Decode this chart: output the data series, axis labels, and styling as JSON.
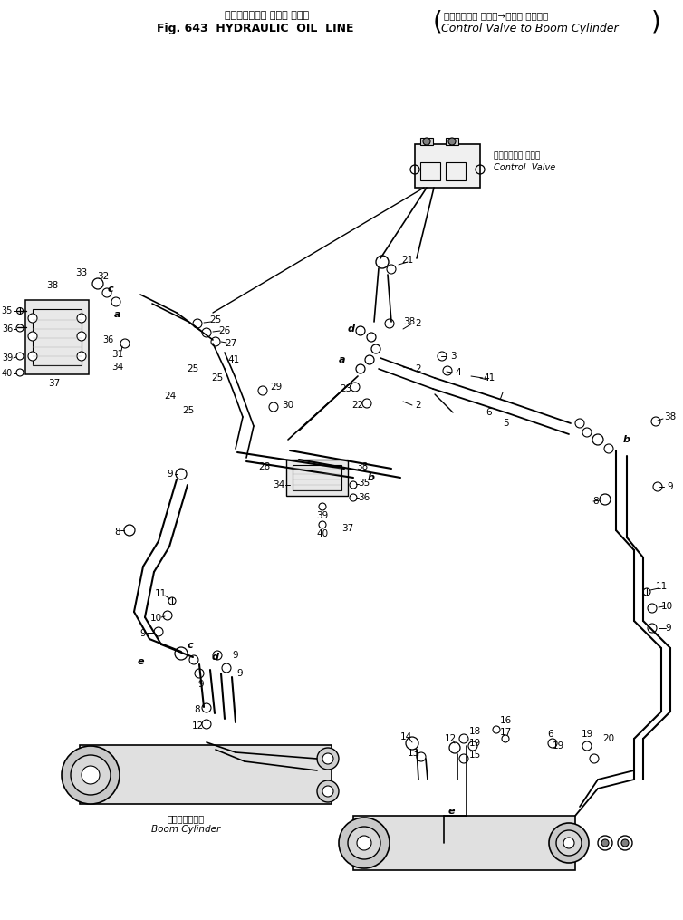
{
  "title_jp": "ハイドロリック オイル ライン",
  "title_bracket_jp": "コントロール バルブ→ブーム シリンダ",
  "title_en": "Fig. 643  HYDRAULIC  OIL  LINE",
  "title_bracket_en": "Control Valve to Boom Cylinder",
  "label_control_valve_jp": "コントロール バルブ",
  "label_control_valve_en": "Control  Valve",
  "label_boom_cylinder_jp": "ノームシリンダ",
  "label_boom_cylinder_en": "Boom Cylinder",
  "bg_color": "#ffffff",
  "line_color": "#000000",
  "text_color": "#000000",
  "fig_width": 7.54,
  "fig_height": 10.15,
  "dpi": 100
}
